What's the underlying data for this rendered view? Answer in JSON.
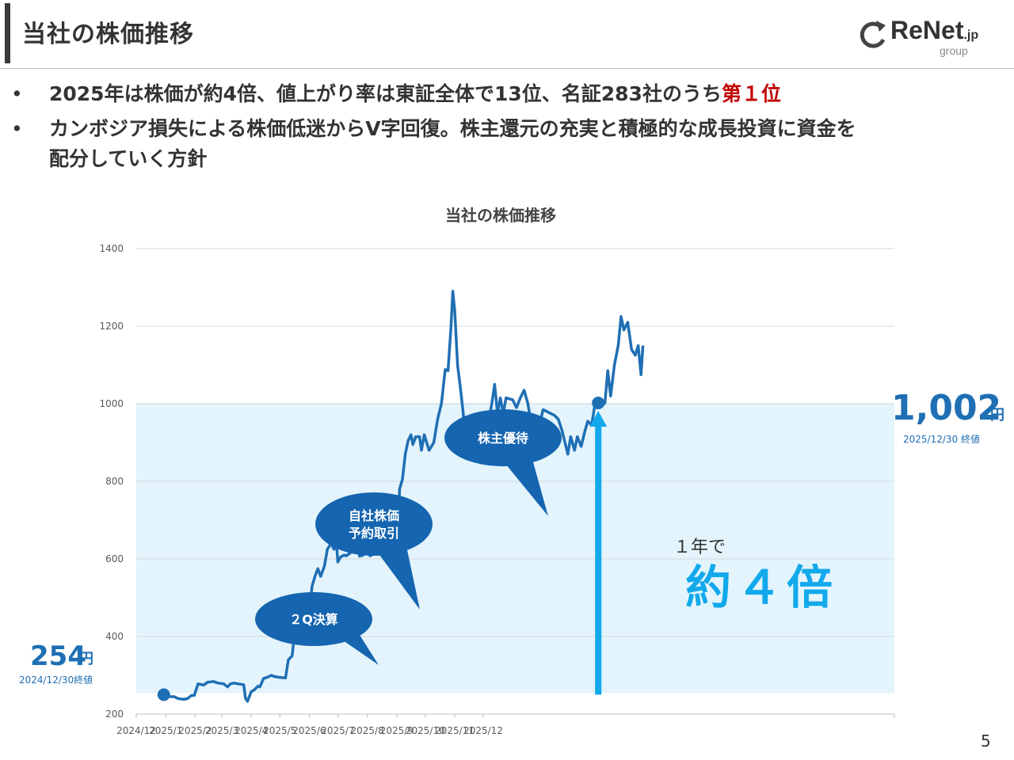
{
  "header": {
    "title": "当社の株価推移"
  },
  "logo": {
    "name": "ReNet",
    "suffix": ".jp",
    "sub": "group"
  },
  "bullets": [
    {
      "text": "2025年は株価が約4倍、値上がり率は東証全体で13位、名証283社のうち",
      "highlight": "第１位"
    },
    {
      "text": "カンボジア損失による株価低迷からV字回復。株主還元の充実と積極的な成長投資に資金を",
      "text2": "配分していく方針"
    }
  ],
  "bullet_marker": "•",
  "chart_data": {
    "type": "line",
    "title": "当社の株価推移",
    "ylim": [
      200,
      1400
    ],
    "y_ticks": [
      "200",
      "400",
      "600",
      "800",
      "1000",
      "1200",
      "1400"
    ],
    "x_ticks": [
      "2024/12",
      "2025/1",
      "2025/2",
      "2025/3",
      "2025/4",
      "2025/5",
      "2025/6",
      "2025/7",
      "2025/8",
      "2025/9",
      "2025/10",
      "2025/11",
      "2025/12"
    ],
    "grid": true,
    "series": [
      {
        "color": "#1f6fb4",
        "points": [
          [
            "2024-12-30",
            250
          ],
          [
            "2025-01-06",
            245
          ],
          [
            "2025-01-10",
            245
          ],
          [
            "2025-01-14",
            240
          ],
          [
            "2025-01-20",
            238
          ],
          [
            "2025-01-24",
            240
          ],
          [
            "2025-01-28",
            248
          ],
          [
            "2025-01-31",
            248
          ],
          [
            "2025-02-04",
            278
          ],
          [
            "2025-02-10",
            275
          ],
          [
            "2025-02-14",
            282
          ],
          [
            "2025-02-20",
            284
          ],
          [
            "2025-02-25",
            280
          ],
          [
            "2025-03-03",
            278
          ],
          [
            "2025-03-07",
            270
          ],
          [
            "2025-03-10",
            278
          ],
          [
            "2025-03-14",
            280
          ],
          [
            "2025-03-18",
            278
          ],
          [
            "2025-03-24",
            276
          ],
          [
            "2025-03-26",
            240
          ],
          [
            "2025-03-28",
            233
          ],
          [
            "2025-04-01",
            258
          ],
          [
            "2025-04-04",
            262
          ],
          [
            "2025-04-08",
            272
          ],
          [
            "2025-04-10",
            270
          ],
          [
            "2025-04-14",
            292
          ],
          [
            "2025-04-18",
            295
          ],
          [
            "2025-04-22",
            300
          ],
          [
            "2025-04-25",
            297
          ],
          [
            "2025-04-30",
            295
          ],
          [
            "2025-05-07",
            293
          ],
          [
            "2025-05-10",
            340
          ],
          [
            "2025-05-14",
            350
          ],
          [
            "2025-05-17",
            420
          ],
          [
            "2025-05-19",
            395
          ],
          [
            "2025-05-23",
            400
          ],
          [
            "2025-05-25",
            422
          ],
          [
            "2025-05-30",
            418
          ],
          [
            "2025-06-02",
            490
          ],
          [
            "2025-06-04",
            530
          ],
          [
            "2025-06-07",
            555
          ],
          [
            "2025-06-10",
            575
          ],
          [
            "2025-06-13",
            555
          ],
          [
            "2025-06-17",
            582
          ],
          [
            "2025-06-20",
            625
          ],
          [
            "2025-06-24",
            640
          ],
          [
            "2025-06-27",
            625
          ],
          [
            "2025-06-30",
            630
          ],
          [
            "2025-07-01",
            592
          ],
          [
            "2025-07-04",
            605
          ],
          [
            "2025-07-08",
            610
          ],
          [
            "2025-07-10",
            608
          ],
          [
            "2025-07-14",
            615
          ],
          [
            "2025-07-18",
            633
          ],
          [
            "2025-07-21",
            640
          ],
          [
            "2025-07-24",
            607
          ],
          [
            "2025-07-28",
            610
          ],
          [
            "2025-07-31",
            620
          ],
          [
            "2025-08-04",
            608
          ],
          [
            "2025-08-08",
            613
          ],
          [
            "2025-08-12",
            635
          ],
          [
            "2025-08-16",
            640
          ],
          [
            "2025-08-20",
            640
          ],
          [
            "2025-08-24",
            625
          ],
          [
            "2025-08-28",
            640
          ],
          [
            "2025-08-31",
            675
          ],
          [
            "2025-09-02",
            640
          ],
          [
            "2025-09-04",
            780
          ],
          [
            "2025-09-07",
            805
          ],
          [
            "2025-09-10",
            870
          ],
          [
            "2025-09-13",
            905
          ],
          [
            "2025-09-16",
            920
          ],
          [
            "2025-09-18",
            895
          ],
          [
            "2025-09-21",
            915
          ],
          [
            "2025-09-25",
            915
          ],
          [
            "2025-09-27",
            880
          ],
          [
            "2025-09-30",
            920
          ],
          [
            "2025-10-05",
            880
          ],
          [
            "2025-10-10",
            900
          ],
          [
            "2025-10-14",
            960
          ],
          [
            "2025-10-18",
            1000
          ],
          [
            "2025-10-22",
            1088
          ],
          [
            "2025-10-25",
            1085
          ],
          [
            "2025-10-28",
            1195
          ],
          [
            "2025-10-30",
            1290
          ],
          [
            "2025-11-01",
            1240
          ],
          [
            "2025-11-04",
            1100
          ],
          [
            "2025-11-07",
            1040
          ],
          [
            "2025-11-10",
            975
          ],
          [
            "2025-11-12",
            880
          ],
          [
            "2025-11-15",
            895
          ],
          [
            "2025-11-18",
            905
          ],
          [
            "2025-11-22",
            890
          ],
          [
            "2025-11-25",
            930
          ],
          [
            "2025-11-28",
            925
          ],
          [
            "2025-12-01",
            975
          ],
          [
            "2025-12-04",
            940
          ],
          [
            "2025-12-07",
            960
          ],
          [
            "2025-12-10",
            1000
          ],
          [
            "2025-12-13",
            1050
          ],
          [
            "2025-12-16",
            975
          ],
          [
            "2025-12-19",
            1015
          ],
          [
            "2025-12-22",
            975
          ],
          [
            "2025-12-25",
            1015
          ],
          [
            "2026-01-01",
            1010
          ],
          [
            "2026-01-05",
            990
          ],
          [
            "2026-01-09",
            1015
          ],
          [
            "2026-01-13",
            1035
          ],
          [
            "2026-01-17",
            1000
          ],
          [
            "2026-01-21",
            940
          ],
          [
            "2026-01-25",
            960
          ],
          [
            "2026-01-29",
            945
          ],
          [
            "2026-02-02",
            985
          ],
          [
            "2026-02-06",
            980
          ],
          [
            "2026-02-10",
            975
          ],
          [
            "2026-02-14",
            970
          ],
          [
            "2026-02-18",
            960
          ],
          [
            "2026-02-22",
            930
          ],
          [
            "2026-02-25",
            900
          ],
          [
            "2026-02-28",
            870
          ],
          [
            "2026-03-03",
            915
          ],
          [
            "2026-03-07",
            880
          ],
          [
            "2026-03-10",
            915
          ],
          [
            "2026-03-14",
            890
          ],
          [
            "2026-03-18",
            930
          ],
          [
            "2026-03-21",
            955
          ],
          [
            "2026-03-25",
            945
          ],
          [
            "2026-03-29",
            1005
          ],
          [
            "2026-04-02",
            1000
          ],
          [
            "2026-04-05",
            995
          ],
          [
            "2026-04-08",
            1002
          ],
          [
            "2026-04-11",
            1085
          ],
          [
            "2026-04-14",
            1020
          ],
          [
            "2026-04-18",
            1100
          ],
          [
            "2026-04-22",
            1150
          ],
          [
            "2026-04-25",
            1225
          ],
          [
            "2026-04-28",
            1190
          ],
          [
            "2026-05-02",
            1210
          ],
          [
            "2026-05-06",
            1140
          ],
          [
            "2026-05-10",
            1125
          ],
          [
            "2026-05-13",
            1150
          ],
          [
            "2026-05-16",
            1075
          ],
          [
            "2026-05-18",
            1150
          ]
        ]
      }
    ],
    "annotations": {
      "start": {
        "value": "254",
        "unit": "円",
        "date": "2024/12/30終値"
      },
      "end": {
        "value": "1,002",
        "unit": "円",
        "date": "2025/12/30 終値"
      },
      "growth_small": "１年で",
      "growth_big": "約４倍",
      "callouts": [
        "２Q決算",
        "自社株価予約取引",
        "株主優待"
      ]
    }
  },
  "page_number": "5"
}
